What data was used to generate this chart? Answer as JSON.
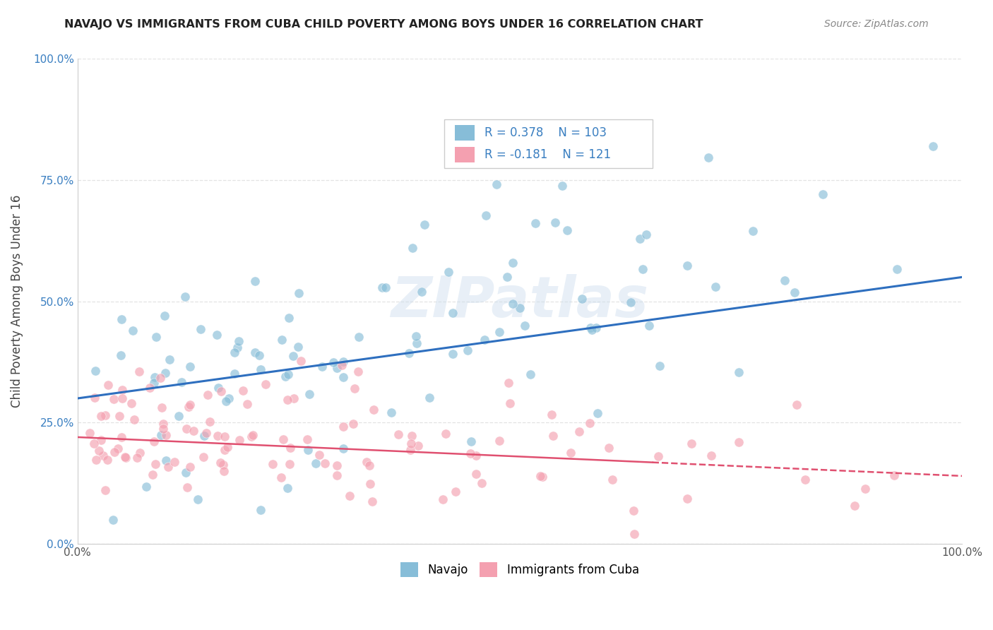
{
  "title": "NAVAJO VS IMMIGRANTS FROM CUBA CHILD POVERTY AMONG BOYS UNDER 16 CORRELATION CHART",
  "source": "Source: ZipAtlas.com",
  "ylabel": "Child Poverty Among Boys Under 16",
  "xlim": [
    0,
    1.0
  ],
  "ylim": [
    0,
    1.0
  ],
  "xtick_labels": [
    "0.0%",
    "100.0%"
  ],
  "ytick_labels": [
    "0.0%",
    "25.0%",
    "50.0%",
    "75.0%",
    "100.0%"
  ],
  "ytick_values": [
    0.0,
    0.25,
    0.5,
    0.75,
    1.0
  ],
  "navajo_R": 0.378,
  "navajo_N": 103,
  "cuba_R": -0.181,
  "cuba_N": 121,
  "navajo_color": "#87BDD8",
  "cuba_color": "#F4A0B0",
  "navajo_line_color": "#2E6FBF",
  "cuba_line_color": "#E05070",
  "legend_navajo": "Navajo",
  "legend_cuba": "Immigrants from Cuba",
  "watermark": "ZIPatlas",
  "background_color": "#FFFFFF",
  "grid_color": "#DDDDDD"
}
